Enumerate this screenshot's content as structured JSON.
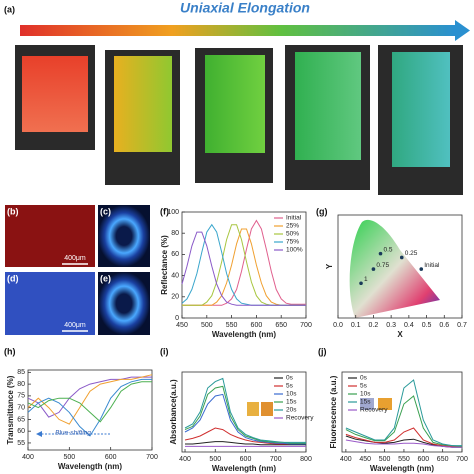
{
  "figure": {
    "title": "Uniaxial Elongation",
    "panel_labels": [
      "(a)",
      "(b)",
      "(c)",
      "(d)",
      "(e)",
      "(f)",
      "(g)",
      "(h)",
      "(i)",
      "(j)"
    ],
    "scale_bars": [
      "400μm",
      "400μm"
    ]
  },
  "chart_data": [
    {
      "type": "line",
      "x_label": "Wavelength (nm)",
      "y_label": "Reflectance (%)",
      "x": [
        450,
        460,
        470,
        480,
        490,
        500,
        510,
        520,
        530,
        540,
        550,
        560,
        570,
        580,
        590,
        600,
        610,
        620,
        630,
        640,
        650,
        660,
        670,
        680,
        690,
        700
      ],
      "xlim": [
        450,
        700
      ],
      "xticks": [
        450,
        500,
        550,
        600,
        650,
        700
      ],
      "ylim": [
        0,
        100
      ],
      "yticks": [
        0,
        20,
        40,
        60,
        80,
        100
      ],
      "legend": "upper right",
      "series": [
        {
          "name": "Initial",
          "color": "#e0608e",
          "values": [
            12,
            12,
            12,
            12,
            12,
            12,
            12,
            12,
            12,
            14,
            18,
            27,
            44,
            65,
            84,
            92,
            84,
            65,
            44,
            27,
            18,
            14,
            13,
            13,
            13,
            13
          ]
        },
        {
          "name": "25%",
          "color": "#f0a030",
          "values": [
            12,
            12,
            12,
            12,
            12,
            12,
            12,
            15,
            21,
            33,
            50,
            70,
            84,
            84,
            70,
            50,
            33,
            21,
            15,
            13,
            12,
            12,
            12,
            12,
            12,
            12
          ]
        },
        {
          "name": "50%",
          "color": "#a8c640",
          "values": [
            12,
            12,
            12,
            12,
            12,
            15,
            21,
            34,
            53,
            74,
            88,
            88,
            74,
            53,
            34,
            21,
            15,
            13,
            12,
            12,
            12,
            12,
            12,
            12,
            12,
            12
          ]
        },
        {
          "name": "75%",
          "color": "#3aa6cc",
          "values": [
            14,
            18,
            27,
            42,
            62,
            81,
            88,
            81,
            62,
            42,
            27,
            18,
            14,
            13,
            12,
            12,
            12,
            12,
            12,
            12,
            12,
            12,
            12,
            12,
            12,
            12
          ]
        },
        {
          "name": "100%",
          "color": "#8a5ac8",
          "values": [
            32,
            49,
            68,
            81,
            81,
            68,
            49,
            32,
            21,
            15,
            13,
            12,
            12,
            12,
            12,
            12,
            12,
            12,
            12,
            12,
            12,
            12,
            12,
            12,
            12,
            12
          ]
        }
      ]
    },
    {
      "type": "scatter",
      "x_label": "X",
      "y_label": "Y",
      "x": [
        0.24,
        0.36,
        0.47,
        0.2,
        0.13
      ],
      "values": [
        0.5,
        0.47,
        0.38,
        0.38,
        0.27
      ],
      "point_labels": [
        "0.5",
        "0.25",
        "Initial",
        "0.75",
        "1"
      ],
      "color": "#1a3a5a",
      "xlim": [
        0,
        0.7
      ],
      "xticks": [
        {
          "value": 0,
          "label": "0.0"
        },
        0.1,
        0.2,
        0.3,
        0.4,
        0.5,
        0.6,
        0.7
      ],
      "ylim": [
        0,
        0.8
      ]
    },
    {
      "type": "line",
      "x_label": "Wavelength (nm)",
      "y_label": "Transmittance (%)",
      "x": [
        400,
        425,
        450,
        475,
        500,
        525,
        550,
        575,
        600,
        625,
        650,
        675,
        700
      ],
      "xlim": [
        400,
        700
      ],
      "xticks": [
        400,
        500,
        600,
        700
      ],
      "ylim": [
        52,
        86
      ],
      "yticks": [
        55,
        60,
        65,
        70,
        75,
        80,
        85
      ],
      "annotation": "Blue-shifting",
      "series": [
        {
          "color": "#8a5ac8",
          "values": [
            74,
            72,
            66,
            68,
            74,
            78,
            80,
            81,
            82,
            82,
            83,
            83,
            83
          ]
        },
        {
          "color": "#f0a030",
          "values": [
            70,
            74,
            70,
            65,
            63,
            70,
            77,
            80,
            81,
            82,
            82,
            83,
            84
          ]
        },
        {
          "color": "#3a8ad0",
          "values": [
            68,
            72,
            74,
            72,
            68,
            62,
            58,
            65,
            74,
            79,
            81,
            82,
            82
          ]
        },
        {
          "color": "#4cb050",
          "values": [
            72,
            70,
            73,
            74,
            74,
            72,
            68,
            64,
            70,
            77,
            80,
            81,
            81
          ]
        }
      ]
    },
    {
      "type": "line",
      "x_label": "Wavelength (nm)",
      "y_label": "Absorbance(a.u.)",
      "x": [
        400,
        425,
        450,
        475,
        500,
        525,
        550,
        575,
        600,
        625,
        650,
        675,
        700,
        725,
        750,
        775,
        800
      ],
      "xlim": [
        390,
        800
      ],
      "xticks": [
        400,
        500,
        600,
        700,
        800
      ],
      "ylim": [
        0,
        1
      ],
      "legend": "upper right",
      "series": [
        {
          "name": "0s",
          "color": "#222222",
          "values": [
            0.1,
            0.1,
            0.11,
            0.12,
            0.13,
            0.13,
            0.12,
            0.11,
            0.1,
            0.1,
            0.09,
            0.09,
            0.09,
            0.09,
            0.09,
            0.09,
            0.09
          ]
        },
        {
          "name": "5s",
          "color": "#d03030",
          "values": [
            0.15,
            0.17,
            0.2,
            0.25,
            0.3,
            0.28,
            0.22,
            0.18,
            0.15,
            0.13,
            0.12,
            0.11,
            0.1,
            0.1,
            0.1,
            0.1,
            0.1
          ]
        },
        {
          "name": "10s",
          "color": "#3a6ad0",
          "values": [
            0.25,
            0.3,
            0.4,
            0.6,
            0.7,
            0.72,
            0.4,
            0.25,
            0.18,
            0.15,
            0.13,
            0.12,
            0.11,
            0.11,
            0.1,
            0.1,
            0.1
          ]
        },
        {
          "name": "15s",
          "color": "#3aa050",
          "values": [
            0.28,
            0.32,
            0.45,
            0.72,
            0.8,
            0.82,
            0.45,
            0.28,
            0.2,
            0.17,
            0.14,
            0.13,
            0.12,
            0.12,
            0.11,
            0.11,
            0.11
          ]
        },
        {
          "name": "20s",
          "color": "#2a9a9a",
          "values": [
            0.3,
            0.35,
            0.5,
            0.8,
            0.88,
            0.92,
            0.5,
            0.3,
            0.22,
            0.18,
            0.15,
            0.14,
            0.13,
            0.12,
            0.12,
            0.12,
            0.12
          ]
        },
        {
          "name": "Recovery",
          "color": "#9a5ac8",
          "values": [
            0.07,
            0.07,
            0.07,
            0.07,
            0.07,
            0.07,
            0.07,
            0.07,
            0.07,
            0.07,
            0.07,
            0.07,
            0.07,
            0.07,
            0.07,
            0.07,
            0.07
          ]
        }
      ]
    },
    {
      "type": "line",
      "x_label": "Wavelength (nm)",
      "y_label": "Fluorescence (a.u.)",
      "x": [
        400,
        425,
        450,
        475,
        500,
        525,
        550,
        575,
        600,
        625,
        650,
        675,
        700
      ],
      "xlim": [
        390,
        700
      ],
      "xticks": [
        400,
        450,
        500,
        550,
        600,
        650,
        700
      ],
      "ylim": [
        0,
        1
      ],
      "legend": "upper left",
      "series": [
        {
          "name": "0s",
          "color": "#222222",
          "values": [
            0.2,
            0.16,
            0.14,
            0.12,
            0.11,
            0.12,
            0.15,
            0.16,
            0.12,
            0.09,
            0.07,
            0.06,
            0.06
          ]
        },
        {
          "name": "5s",
          "color": "#d03030",
          "values": [
            0.22,
            0.18,
            0.15,
            0.12,
            0.12,
            0.15,
            0.25,
            0.3,
            0.15,
            0.1,
            0.08,
            0.07,
            0.07
          ]
        },
        {
          "name": "10s",
          "color": "#3aa050",
          "values": [
            0.28,
            0.22,
            0.18,
            0.14,
            0.14,
            0.25,
            0.6,
            0.7,
            0.3,
            0.12,
            0.09,
            0.08,
            0.07
          ]
        },
        {
          "name": "15s",
          "color": "#2a9a9a",
          "values": [
            0.3,
            0.25,
            0.2,
            0.15,
            0.15,
            0.3,
            0.8,
            0.9,
            0.4,
            0.15,
            0.1,
            0.08,
            0.08
          ]
        },
        {
          "name": "Recovery",
          "color": "#9a5ac8",
          "values": [
            0.15,
            0.13,
            0.11,
            0.1,
            0.1,
            0.1,
            0.11,
            0.11,
            0.1,
            0.08,
            0.07,
            0.06,
            0.06
          ]
        }
      ]
    }
  ]
}
